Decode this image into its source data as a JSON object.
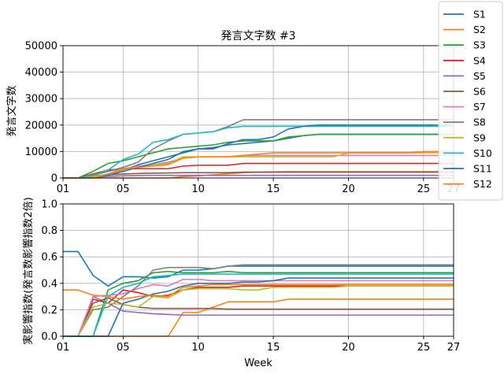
{
  "chart_data": [
    {
      "type": "line",
      "title": "発言文字数 #3",
      "xlabel": "",
      "ylabel": "発言文字数",
      "xlim": [
        1,
        27
      ],
      "ylim": [
        0,
        50000
      ],
      "x_ticks": [
        1,
        5,
        10,
        15,
        20,
        25,
        27
      ],
      "x_tick_labels": [
        "01",
        "05",
        "10",
        "15",
        "20",
        "25",
        "27"
      ],
      "y_ticks": [
        0,
        10000,
        20000,
        30000,
        40000,
        50000
      ],
      "y_tick_labels": [
        "0",
        "10000",
        "20000",
        "30000",
        "40000",
        "50000"
      ],
      "grid": true,
      "x": [
        1,
        2,
        3,
        4,
        5,
        6,
        7,
        8,
        9,
        10,
        11,
        12,
        13,
        14,
        15,
        16,
        17,
        18,
        19,
        20,
        21,
        22,
        23,
        24,
        25,
        26,
        27
      ],
      "series": [
        {
          "name": "S1",
          "color": "#1f77b4",
          "values": [
            0,
            0,
            500,
            1500,
            3000,
            5000,
            6500,
            8000,
            9500,
            11000,
            11500,
            12500,
            13000,
            13500,
            14000,
            15000,
            16000,
            16500,
            16500,
            16500,
            16500,
            16500,
            16500,
            16500,
            16500,
            16500,
            16500
          ]
        },
        {
          "name": "S2",
          "color": "#ff7f0e",
          "values": [
            0,
            0,
            0,
            0,
            0,
            0,
            0,
            0,
            500,
            800,
            1200,
            1600,
            2000,
            2200,
            2300,
            2400,
            2400,
            2400,
            2400,
            2400,
            2400,
            2400,
            2400,
            2400,
            2400,
            2400,
            2400
          ]
        },
        {
          "name": "S3",
          "color": "#2ca02c",
          "values": [
            0,
            0,
            2500,
            5500,
            6500,
            8000,
            9500,
            11000,
            11500,
            12000,
            12500,
            13500,
            14000,
            14000,
            14000,
            15500,
            16000,
            16500,
            16500,
            16500,
            16500,
            16500,
            16500,
            16500,
            16500,
            16500,
            16500
          ]
        },
        {
          "name": "S4",
          "color": "#d62728",
          "values": [
            0,
            0,
            1500,
            3000,
            3500,
            3500,
            3500,
            3500,
            4500,
            4800,
            4800,
            4800,
            5500,
            5500,
            5500,
            5500,
            5500,
            5500,
            5500,
            5500,
            5500,
            5500,
            5500,
            5500,
            5500,
            5500,
            5500
          ]
        },
        {
          "name": "S5",
          "color": "#9467bd",
          "values": [
            0,
            0,
            300,
            600,
            800,
            900,
            1000,
            1000,
            1000,
            1000,
            1000,
            1000,
            1000,
            1000,
            1000,
            1000,
            1000,
            1000,
            1000,
            1000,
            1000,
            1000,
            1000,
            1000,
            1000,
            1000,
            1000
          ]
        },
        {
          "name": "S6",
          "color": "#8c564b",
          "values": [
            0,
            0,
            800,
            1200,
            1500,
            1700,
            1800,
            1900,
            2000,
            2000,
            2000,
            2000,
            2200,
            2200,
            2200,
            2200,
            2200,
            2200,
            2200,
            2200,
            2200,
            2200,
            2200,
            2200,
            2200,
            2200,
            2200
          ]
        },
        {
          "name": "S7",
          "color": "#e377c2",
          "values": [
            0,
            0,
            1000,
            2500,
            3500,
            4500,
            5000,
            6000,
            7500,
            8000,
            8000,
            8000,
            8500,
            8500,
            8500,
            8500,
            8500,
            8500,
            8500,
            8500,
            8500,
            8500,
            8500,
            8500,
            8500,
            8500,
            8500
          ]
        },
        {
          "name": "S8",
          "color": "#7f7f7f",
          "values": [
            0,
            0,
            1000,
            2500,
            4000,
            6000,
            11000,
            14000,
            16500,
            17000,
            17500,
            19500,
            22000,
            22000,
            22000,
            22000,
            22000,
            22000,
            22000,
            22000,
            22000,
            22000,
            22000,
            22000,
            22000,
            22000,
            22000
          ]
        },
        {
          "name": "S9",
          "color": "#bcbd22",
          "values": [
            0,
            0,
            500,
            1500,
            3000,
            4000,
            5000,
            5500,
            8000,
            8000,
            8000,
            8000,
            8000,
            8000,
            8000,
            8000,
            8000,
            8000,
            8000,
            9500,
            9500,
            9500,
            9500,
            9500,
            9500,
            9500,
            9500
          ]
        },
        {
          "name": "S10",
          "color": "#17becf",
          "values": [
            0,
            0,
            1000,
            3000,
            7000,
            9000,
            13500,
            14500,
            16500,
            17000,
            17500,
            19000,
            19500,
            19500,
            19500,
            19500,
            19500,
            19500,
            19500,
            19500,
            19500,
            19500,
            19500,
            19500,
            19500,
            19500,
            19500
          ]
        },
        {
          "name": "S11",
          "color": "#1f77b4",
          "values": [
            0,
            0,
            0,
            1000,
            2500,
            4000,
            5500,
            7000,
            10000,
            11000,
            11000,
            13000,
            14500,
            14500,
            15500,
            18500,
            19500,
            20000,
            20000,
            20000,
            20000,
            20000,
            20000,
            20000,
            20000,
            20000,
            20000
          ]
        },
        {
          "name": "S12",
          "color": "#ff7f0e",
          "values": [
            0,
            0,
            0,
            1500,
            3500,
            4000,
            4500,
            5000,
            7500,
            8000,
            8000,
            8000,
            8500,
            9000,
            9500,
            9500,
            9500,
            9500,
            9500,
            9500,
            9500,
            9500,
            9500,
            9500,
            10000,
            10000,
            10000
          ]
        }
      ],
      "legend_position": "upper right (outside)"
    },
    {
      "type": "line",
      "title": "",
      "xlabel": "Week",
      "ylabel": "実影響指数(発言数影響指数2倍)",
      "xlim": [
        1,
        27
      ],
      "ylim": [
        0,
        1.0
      ],
      "x_ticks": [
        1,
        5,
        10,
        15,
        20,
        25,
        27
      ],
      "x_tick_labels": [
        "01",
        "05",
        "10",
        "15",
        "20",
        "25",
        "27"
      ],
      "y_ticks": [
        0,
        0.2,
        0.4,
        0.6,
        0.8,
        1.0
      ],
      "y_tick_labels": [
        "0.0",
        "0.2",
        "0.4",
        "0.6",
        "0.8",
        "1.0"
      ],
      "grid": true,
      "x": [
        1,
        2,
        3,
        4,
        5,
        6,
        7,
        8,
        9,
        10,
        11,
        12,
        13,
        14,
        15,
        16,
        17,
        18,
        19,
        20,
        21,
        22,
        23,
        24,
        25,
        26,
        27
      ],
      "series": [
        {
          "name": "S1",
          "color": "#1f77b4",
          "values": [
            0.64,
            0.64,
            0.46,
            0.38,
            0.45,
            0.45,
            0.44,
            0.45,
            0.5,
            0.5,
            0.51,
            0.53,
            0.53,
            0.53,
            0.53,
            0.53,
            0.53,
            0.53,
            0.53,
            0.53,
            0.53,
            0.53,
            0.53,
            0.53,
            0.53,
            0.53,
            0.53
          ]
        },
        {
          "name": "S2",
          "color": "#ff7f0e",
          "values": [
            0,
            0,
            0,
            0,
            0,
            0,
            0,
            0,
            0.18,
            0.18,
            0.22,
            0.26,
            0.26,
            0.26,
            0.26,
            0.28,
            0.28,
            0.28,
            0.28,
            0.28,
            0.28,
            0.28,
            0.28,
            0.28,
            0.28,
            0.28,
            0.28
          ]
        },
        {
          "name": "S3",
          "color": "#2ca02c",
          "values": [
            0,
            0,
            0,
            0.35,
            0.4,
            0.42,
            0.48,
            0.49,
            0.48,
            0.48,
            0.48,
            0.49,
            0.48,
            0.48,
            0.48,
            0.48,
            0.48,
            0.48,
            0.48,
            0.48,
            0.48,
            0.48,
            0.48,
            0.48,
            0.48,
            0.48,
            0.48
          ]
        },
        {
          "name": "S4",
          "color": "#d62728",
          "values": [
            0,
            0,
            0.28,
            0.25,
            0.35,
            0.33,
            0.3,
            0.31,
            0.35,
            0.37,
            0.37,
            0.37,
            0.38,
            0.38,
            0.38,
            0.38,
            0.38,
            0.38,
            0.38,
            0.38,
            0.38,
            0.38,
            0.38,
            0.38,
            0.38,
            0.38,
            0.38
          ]
        },
        {
          "name": "S5",
          "color": "#9467bd",
          "values": [
            0,
            0,
            0.3,
            0.25,
            0.19,
            0.18,
            0.17,
            0.165,
            0.16,
            0.16,
            0.16,
            0.16,
            0.16,
            0.16,
            0.16,
            0.16,
            0.16,
            0.16,
            0.16,
            0.16,
            0.16,
            0.16,
            0.16,
            0.16,
            0.16,
            0.16,
            0.16
          ]
        },
        {
          "name": "S6",
          "color": "#8c564b",
          "values": [
            0,
            0,
            0.25,
            0.29,
            0.24,
            0.22,
            0.21,
            0.21,
            0.21,
            0.21,
            0.21,
            0.205,
            0.205,
            0.205,
            0.205,
            0.205,
            0.205,
            0.205,
            0.205,
            0.205,
            0.205,
            0.205,
            0.205,
            0.205,
            0.205,
            0.205,
            0.205
          ]
        },
        {
          "name": "S7",
          "color": "#e377c2",
          "values": [
            0,
            0,
            0.3,
            0.31,
            0.32,
            0.36,
            0.39,
            0.38,
            0.43,
            0.43,
            0.42,
            0.42,
            0.42,
            0.42,
            0.42,
            0.42,
            0.42,
            0.42,
            0.42,
            0.42,
            0.42,
            0.42,
            0.42,
            0.42,
            0.42,
            0.42,
            0.42
          ]
        },
        {
          "name": "S8",
          "color": "#7f7f7f",
          "values": [
            0,
            0,
            0.2,
            0.22,
            0.3,
            0.38,
            0.5,
            0.52,
            0.52,
            0.52,
            0.51,
            0.53,
            0.54,
            0.54,
            0.54,
            0.54,
            0.54,
            0.54,
            0.54,
            0.54,
            0.54,
            0.54,
            0.54,
            0.54,
            0.54,
            0.54,
            0.54
          ]
        },
        {
          "name": "S9",
          "color": "#bcbd22",
          "values": [
            0,
            0,
            0.22,
            0.25,
            0.24,
            0.22,
            0.3,
            0.29,
            0.35,
            0.36,
            0.36,
            0.36,
            0.35,
            0.35,
            0.37,
            0.37,
            0.37,
            0.37,
            0.37,
            0.38,
            0.38,
            0.38,
            0.38,
            0.38,
            0.38,
            0.38,
            0.38
          ]
        },
        {
          "name": "S10",
          "color": "#17becf",
          "values": [
            0,
            0,
            0,
            0.3,
            0.37,
            0.4,
            0.45,
            0.46,
            0.47,
            0.47,
            0.47,
            0.47,
            0.47,
            0.47,
            0.47,
            0.47,
            0.47,
            0.47,
            0.47,
            0.47,
            0.47,
            0.47,
            0.47,
            0.47,
            0.47,
            0.47,
            0.47
          ]
        },
        {
          "name": "S11",
          "color": "#1f77b4",
          "values": [
            0,
            0,
            0,
            0,
            0.25,
            0.28,
            0.32,
            0.34,
            0.38,
            0.4,
            0.4,
            0.4,
            0.41,
            0.41,
            0.42,
            0.44,
            0.44,
            0.44,
            0.44,
            0.44,
            0.44,
            0.44,
            0.44,
            0.44,
            0.44,
            0.44,
            0.44
          ]
        },
        {
          "name": "S12",
          "color": "#ff7f0e",
          "values": [
            0.35,
            0.35,
            0.31,
            0.3,
            0.28,
            0.3,
            0.31,
            0.3,
            0.37,
            0.38,
            0.39,
            0.39,
            0.39,
            0.39,
            0.39,
            0.39,
            0.39,
            0.39,
            0.39,
            0.39,
            0.39,
            0.39,
            0.39,
            0.39,
            0.39,
            0.39,
            0.39
          ]
        }
      ]
    }
  ]
}
